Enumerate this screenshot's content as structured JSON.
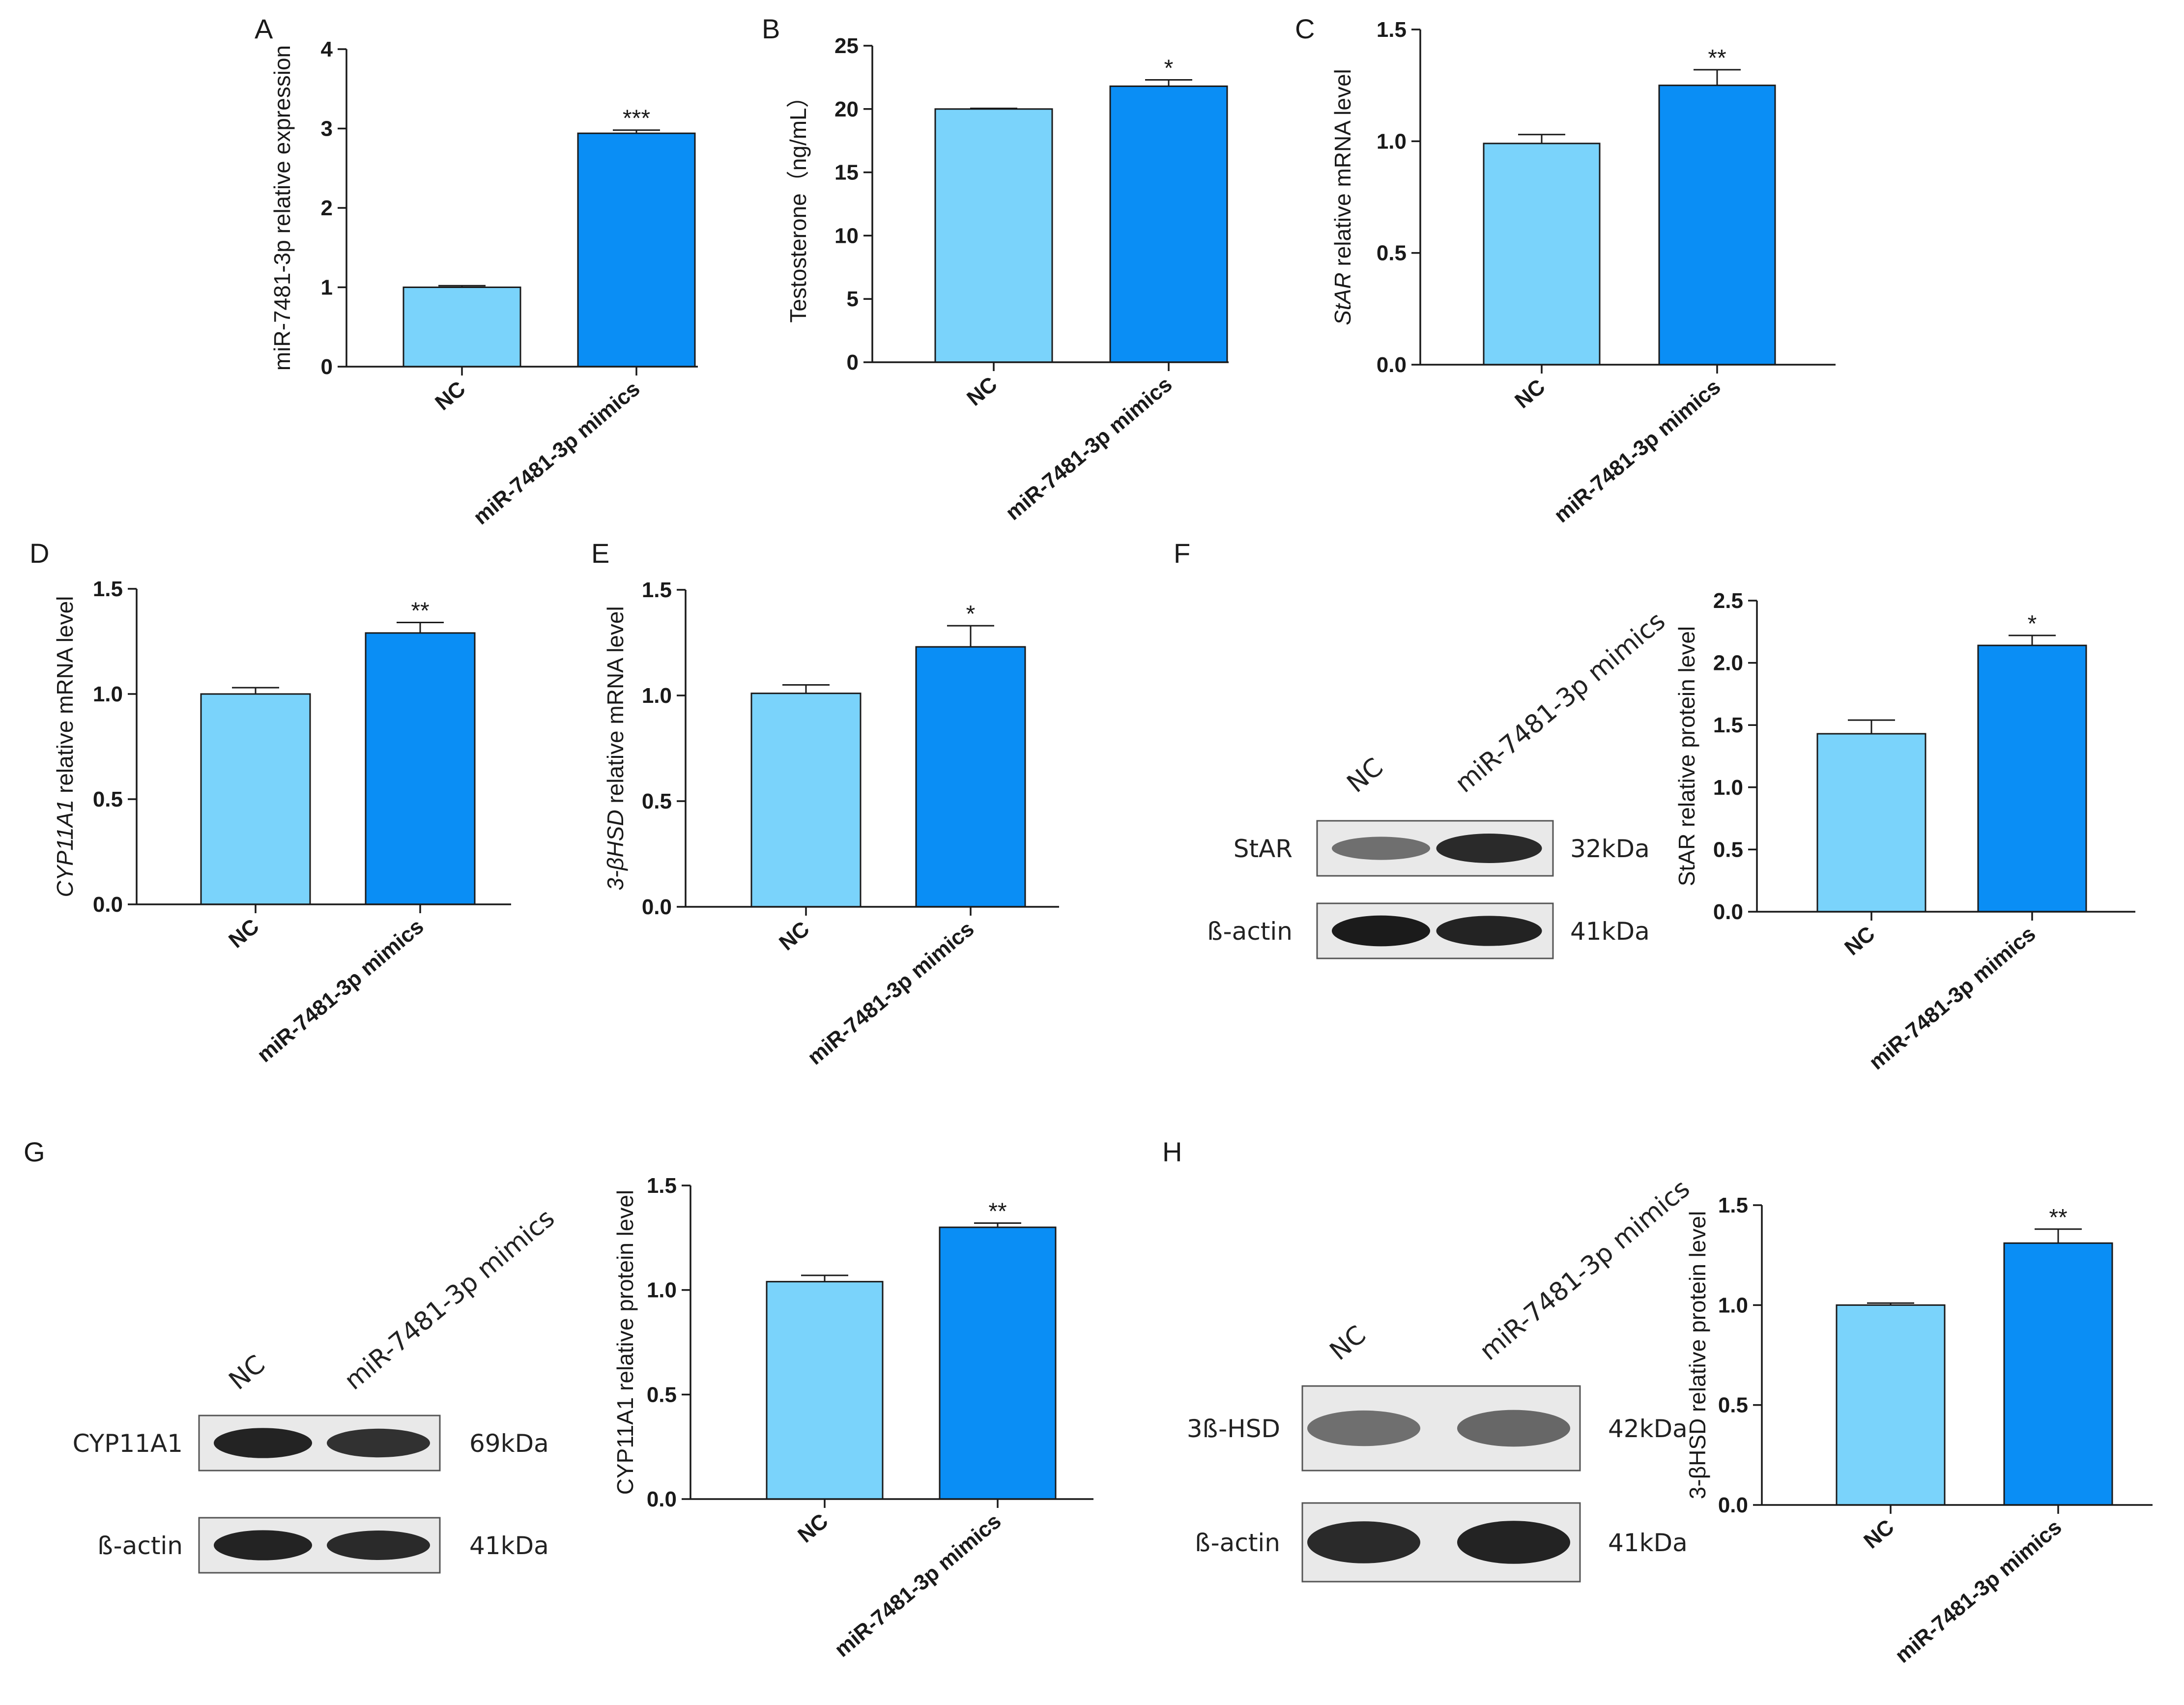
{
  "chart_data": [
    {
      "id": "A",
      "panel_label": "A",
      "type": "bar",
      "categories": [
        "NC",
        "miR-7481-3p mimics"
      ],
      "values": [
        1.0,
        2.94
      ],
      "errors": [
        0.02,
        0.04
      ],
      "significance": [
        "",
        "***"
      ],
      "ylabel": "miR-7481-3p relative expression",
      "ylabel_italic": "",
      "yticks": [
        "0",
        "1",
        "2",
        "3",
        "4"
      ],
      "ylim": [
        0,
        4
      ],
      "colors": [
        "#7ad3fb",
        "#0a8ef5"
      ]
    },
    {
      "id": "B",
      "panel_label": "B",
      "type": "bar",
      "categories": [
        "NC",
        "miR-7481-3p mimics"
      ],
      "values": [
        20.0,
        21.8
      ],
      "errors": [
        0.05,
        0.5
      ],
      "significance": [
        "",
        "*"
      ],
      "ylabel": "Testosterone（ng/mL）",
      "ylabel_italic": "",
      "yticks": [
        "0",
        "5",
        "10",
        "15",
        "20",
        "25"
      ],
      "ylim": [
        0,
        25
      ],
      "colors": [
        "#7ad3fb",
        "#0a8ef5"
      ]
    },
    {
      "id": "C",
      "panel_label": "C",
      "type": "bar",
      "categories": [
        "NC",
        "miR-7481-3p mimics"
      ],
      "values": [
        0.99,
        1.25
      ],
      "errors": [
        0.04,
        0.07
      ],
      "significance": [
        "",
        "**"
      ],
      "ylabel": " relative mRNA level",
      "ylabel_italic": "StAR",
      "yticks": [
        "0.0",
        "0.5",
        "1.0",
        "1.5"
      ],
      "ylim": [
        0,
        1.5
      ],
      "colors": [
        "#7ad3fb",
        "#0a8ef5"
      ]
    },
    {
      "id": "D",
      "panel_label": "D",
      "type": "bar",
      "categories": [
        "NC",
        "miR-7481-3p mimics"
      ],
      "values": [
        1.0,
        1.29
      ],
      "errors": [
        0.03,
        0.05
      ],
      "significance": [
        "",
        "**"
      ],
      "ylabel": " relative mRNA level",
      "ylabel_italic": "CYP11A1",
      "yticks": [
        "0.0",
        "0.5",
        "1.0",
        "1.5"
      ],
      "ylim": [
        0,
        1.5
      ],
      "colors": [
        "#7ad3fb",
        "#0a8ef5"
      ]
    },
    {
      "id": "E",
      "panel_label": "E",
      "type": "bar",
      "categories": [
        "NC",
        "miR-7481-3p mimics"
      ],
      "values": [
        1.01,
        1.23
      ],
      "errors": [
        0.04,
        0.1
      ],
      "significance": [
        "",
        "*"
      ],
      "ylabel": " relative mRNA level",
      "ylabel_italic": "3-βHSD",
      "yticks": [
        "0.0",
        "0.5",
        "1.0",
        "1.5"
      ],
      "ylim": [
        0,
        1.5
      ],
      "colors": [
        "#7ad3fb",
        "#0a8ef5"
      ]
    },
    {
      "id": "F",
      "panel_label": "F",
      "type": "bar",
      "categories": [
        "NC",
        "miR-7481-3p mimics"
      ],
      "values": [
        1.43,
        2.14
      ],
      "errors": [
        0.11,
        0.08
      ],
      "significance": [
        "",
        "*"
      ],
      "ylabel": "StAR relative protein level",
      "ylabel_italic": "",
      "yticks": [
        "0.0",
        "0.5",
        "1.0",
        "1.5",
        "2.0",
        "2.5"
      ],
      "ylim": [
        0,
        2.5
      ],
      "colors": [
        "#7ad3fb",
        "#0a8ef5"
      ]
    },
    {
      "id": "G",
      "panel_label": "G",
      "type": "bar",
      "categories": [
        "NC",
        "miR-7481-3p mimics"
      ],
      "values": [
        1.04,
        1.3
      ],
      "errors": [
        0.03,
        0.02
      ],
      "significance": [
        "",
        "**"
      ],
      "ylabel": "CYP11A1 relative protein level",
      "ylabel_italic": "",
      "yticks": [
        "0.0",
        "0.5",
        "1.0",
        "1.5"
      ],
      "ylim": [
        0,
        1.5
      ],
      "colors": [
        "#7ad3fb",
        "#0a8ef5"
      ]
    },
    {
      "id": "H",
      "panel_label": "H",
      "type": "bar",
      "categories": [
        "NC",
        "miR-7481-3p mimics"
      ],
      "values": [
        1.0,
        1.31
      ],
      "errors": [
        0.01,
        0.07
      ],
      "significance": [
        "",
        "**"
      ],
      "ylabel": "3-βHSD relative protein level",
      "ylabel_italic": "",
      "yticks": [
        "0.0",
        "0.5",
        "1.0",
        "1.5"
      ],
      "ylim": [
        0,
        1.5
      ],
      "colors": [
        "#7ad3fb",
        "#0a8ef5"
      ]
    }
  ],
  "blots": {
    "F": {
      "lane_labels": [
        "NC",
        "miR-7481-3p mimics"
      ],
      "rows": [
        {
          "protein": "StAR",
          "size": "32kDa",
          "band_intensity": [
            0.45,
            0.9
          ]
        },
        {
          "protein": "ß-actin",
          "size": "41kDa",
          "band_intensity": [
            1.0,
            0.95
          ]
        }
      ]
    },
    "G": {
      "lane_labels": [
        "NC",
        "miR-7481-3p mimics"
      ],
      "rows": [
        {
          "protein": "CYP11A1",
          "size": "69kDa",
          "band_intensity": [
            0.95,
            0.85
          ]
        },
        {
          "protein": "ß-actin",
          "size": "41kDa",
          "band_intensity": [
            0.95,
            0.9
          ]
        }
      ]
    },
    "H": {
      "lane_labels": [
        "NC",
        "miR-7481-3p mimics"
      ],
      "rows": [
        {
          "protein": "3ß-HSD",
          "size": "42kDa",
          "band_intensity": [
            0.45,
            0.5
          ]
        },
        {
          "protein": "ß-actin",
          "size": "41kDa",
          "band_intensity": [
            0.9,
            0.95
          ]
        }
      ]
    }
  }
}
